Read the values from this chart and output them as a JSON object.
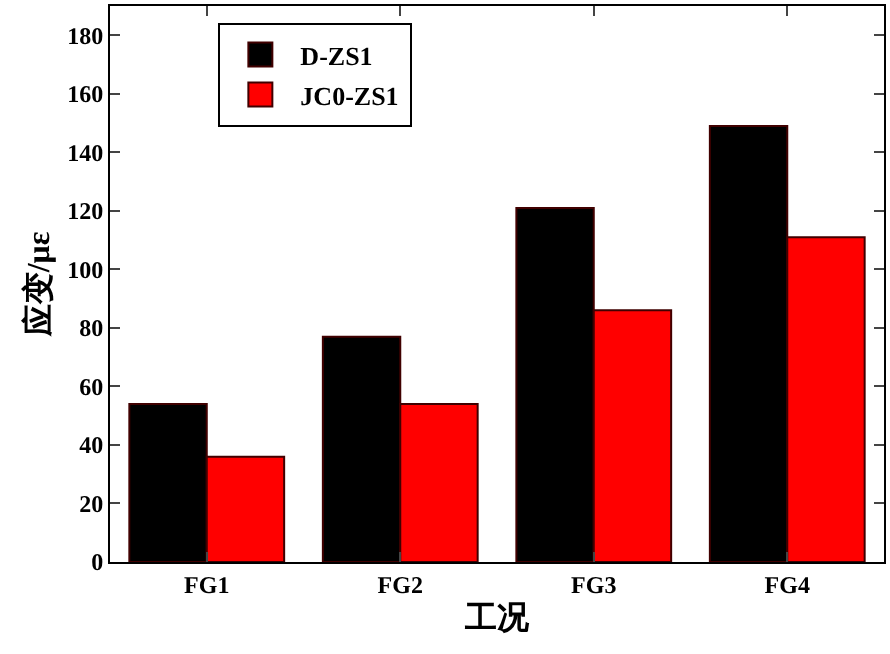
{
  "chart_data": {
    "type": "bar",
    "xlabel": "工况",
    "ylabel": "应变/με",
    "categories": [
      "FG1",
      "FG2",
      "FG3",
      "FG4"
    ],
    "series": [
      {
        "name": "D-ZS1",
        "color": "#000000",
        "values": [
          54,
          77,
          121,
          149
        ]
      },
      {
        "name": "JC0-ZS1",
        "color": "#ff0000",
        "values": [
          36,
          54,
          86,
          111
        ]
      }
    ],
    "ylim": [
      0,
      190
    ],
    "yticks": [
      0,
      20,
      40,
      60,
      80,
      100,
      120,
      140,
      160,
      180
    ],
    "legend": "top left"
  }
}
